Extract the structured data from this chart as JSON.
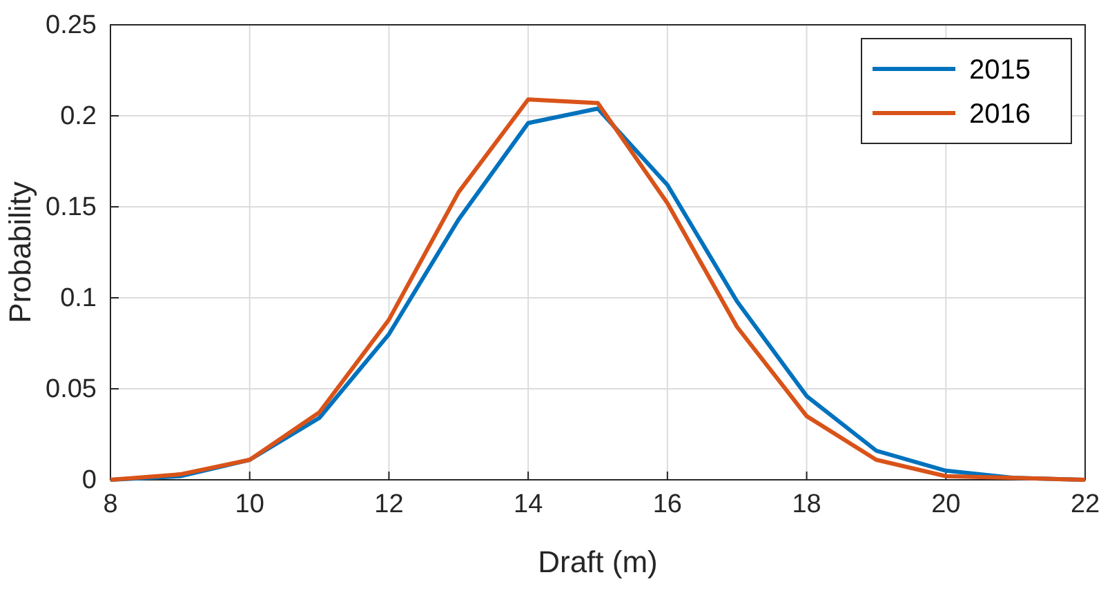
{
  "chart_data": {
    "type": "line",
    "xlabel": "Draft (m)",
    "ylabel": "Probability",
    "x": [
      8,
      9,
      10,
      11,
      12,
      13,
      14,
      15,
      16,
      17,
      18,
      19,
      20,
      21,
      22
    ],
    "series": [
      {
        "name": "2015",
        "color": "#0072bd",
        "values": [
          0,
          0.002,
          0.011,
          0.034,
          0.08,
          0.143,
          0.196,
          0.204,
          0.162,
          0.098,
          0.046,
          0.016,
          0.005,
          0.001,
          0
        ]
      },
      {
        "name": "2016",
        "color": "#d95319",
        "values": [
          0,
          0.003,
          0.011,
          0.037,
          0.088,
          0.158,
          0.209,
          0.207,
          0.152,
          0.084,
          0.035,
          0.011,
          0.002,
          0.001,
          0
        ]
      }
    ],
    "xlim": [
      8,
      22
    ],
    "xticks": [
      8,
      10,
      12,
      14,
      16,
      18,
      20,
      22
    ],
    "ylim": [
      0,
      0.25
    ],
    "yticks": [
      0,
      0.05,
      0.1,
      0.15,
      0.2,
      0.25
    ],
    "grid": true,
    "legend": "top right"
  }
}
